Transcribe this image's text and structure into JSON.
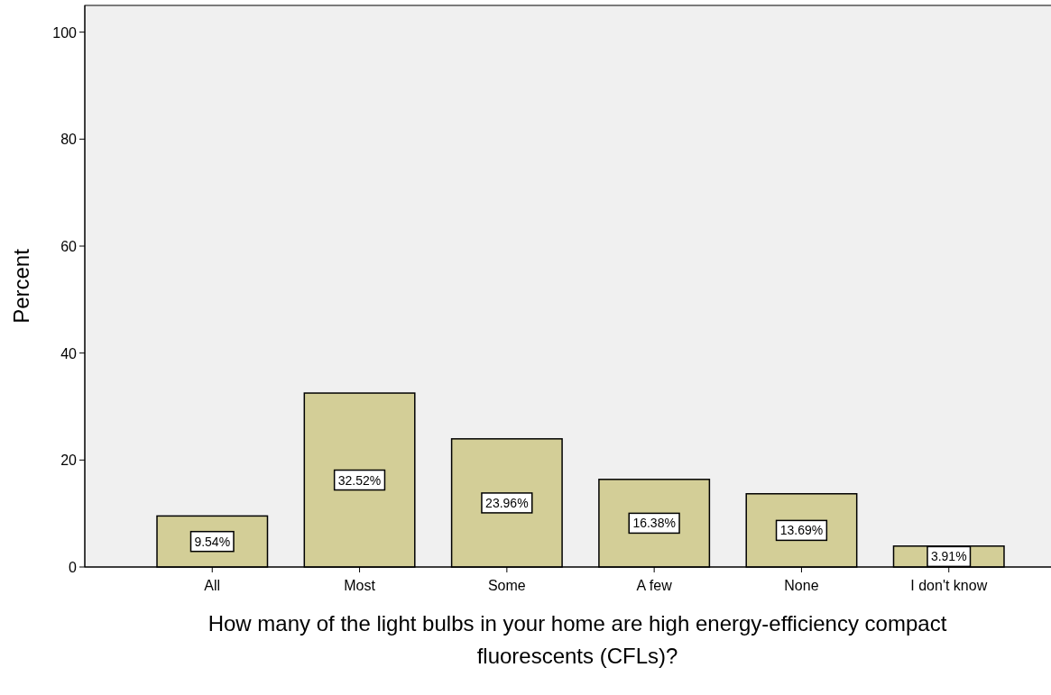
{
  "chart_data": {
    "type": "bar",
    "xlabel": "How many of the light bulbs in your home are high energy-efficiency compact fluorescents (CFLs)?",
    "ylabel": "Percent",
    "categories": [
      "All",
      "Most",
      "Some",
      "A few",
      "None",
      "I don't know"
    ],
    "values": [
      9.54,
      32.52,
      23.96,
      16.38,
      13.69,
      3.91
    ],
    "value_labels": [
      "9.54%",
      "32.52%",
      "23.96%",
      "16.38%",
      "13.69%",
      "3.91%"
    ],
    "color": "#d3ce97",
    "ylim": [
      0,
      105
    ],
    "yticks": [
      0,
      20,
      40,
      60,
      80,
      100
    ],
    "grid": false
  }
}
